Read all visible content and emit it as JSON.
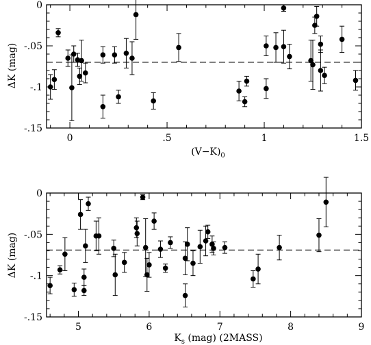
{
  "chart_data": [
    {
      "type": "scatter",
      "xlabel_main": "(V−K)",
      "xlabel_sub": "0",
      "ylabel": "ΔK (mag)",
      "xlim": [
        -0.12,
        1.5
      ],
      "ylim": [
        -0.15,
        0
      ],
      "xticks": [
        0,
        0.5,
        1,
        1.5
      ],
      "xtick_labels": [
        "0",
        ".5",
        "1",
        "1.5"
      ],
      "yticks": [
        0,
        -0.05,
        -0.1,
        -0.15
      ],
      "ytick_labels": [
        "0",
        "-.05",
        "-.1",
        "-.15"
      ],
      "reference_line_y": -0.07,
      "points": [
        {
          "x": -0.1,
          "y": -0.1,
          "err": 0.015
        },
        {
          "x": -0.08,
          "y": -0.091,
          "err": 0.012
        },
        {
          "x": -0.06,
          "y": -0.034,
          "err": 0.005
        },
        {
          "x": -0.01,
          "y": -0.065,
          "err": 0.01
        },
        {
          "x": 0.01,
          "y": -0.101,
          "err": 0.04
        },
        {
          "x": 0.02,
          "y": -0.06,
          "err": 0.01
        },
        {
          "x": 0.04,
          "y": -0.067,
          "err": 0.008
        },
        {
          "x": 0.05,
          "y": -0.087,
          "err": 0.01
        },
        {
          "x": 0.06,
          "y": -0.068,
          "err": 0.025
        },
        {
          "x": 0.08,
          "y": -0.083,
          "err": 0.012
        },
        {
          "x": 0.17,
          "y": -0.061,
          "err": 0.01
        },
        {
          "x": 0.17,
          "y": -0.124,
          "err": 0.014
        },
        {
          "x": 0.23,
          "y": -0.061,
          "err": 0.01
        },
        {
          "x": 0.25,
          "y": -0.112,
          "err": 0.008
        },
        {
          "x": 0.29,
          "y": -0.059,
          "err": 0.018
        },
        {
          "x": 0.32,
          "y": -0.065,
          "err": 0.02
        },
        {
          "x": 0.34,
          "y": -0.012,
          "err": 0.03
        },
        {
          "x": 0.43,
          "y": -0.117,
          "err": 0.01
        },
        {
          "x": 0.56,
          "y": -0.052,
          "err": 0.017
        },
        {
          "x": 0.87,
          "y": -0.105,
          "err": 0.012
        },
        {
          "x": 0.9,
          "y": -0.118,
          "err": 0.006
        },
        {
          "x": 0.91,
          "y": -0.093,
          "err": 0.006
        },
        {
          "x": 1.01,
          "y": -0.05,
          "err": 0.012
        },
        {
          "x": 1.01,
          "y": -0.102,
          "err": 0.012
        },
        {
          "x": 1.06,
          "y": -0.052,
          "err": 0.018
        },
        {
          "x": 1.1,
          "y": -0.051,
          "err": 0.02
        },
        {
          "x": 1.1,
          "y": -0.004,
          "err": 0.004
        },
        {
          "x": 1.13,
          "y": -0.063,
          "err": 0.015
        },
        {
          "x": 1.24,
          "y": -0.068,
          "err": 0.025
        },
        {
          "x": 1.25,
          "y": -0.073,
          "err": 0.03
        },
        {
          "x": 1.26,
          "y": -0.025,
          "err": 0.01
        },
        {
          "x": 1.27,
          "y": -0.014,
          "err": 0.012
        },
        {
          "x": 1.29,
          "y": -0.048,
          "err": 0.01
        },
        {
          "x": 1.29,
          "y": -0.08,
          "err": 0.025
        },
        {
          "x": 1.31,
          "y": -0.086,
          "err": 0.01
        },
        {
          "x": 1.4,
          "y": -0.042,
          "err": 0.016
        },
        {
          "x": 1.47,
          "y": -0.092,
          "err": 0.012
        }
      ]
    },
    {
      "type": "scatter",
      "xlabel_main": "K",
      "xlabel_sub": "s",
      "xlabel_rest": " (mag)  (2MASS)",
      "ylabel": "ΔK (mag)",
      "xlim": [
        4.55,
        9
      ],
      "ylim": [
        -0.15,
        0
      ],
      "xticks": [
        5,
        6,
        7,
        8,
        9
      ],
      "xtick_labels": [
        "5",
        "6",
        "7",
        "8",
        "9"
      ],
      "yticks": [
        0,
        -0.05,
        -0.1,
        -0.15
      ],
      "ytick_labels": [
        "0",
        "-.05",
        "-.1",
        "-.15"
      ],
      "reference_line_y": -0.069,
      "points": [
        {
          "x": 4.6,
          "y": -0.112,
          "err": 0.01
        },
        {
          "x": 4.74,
          "y": -0.093,
          "err": 0.005
        },
        {
          "x": 4.81,
          "y": -0.074,
          "err": 0.02
        },
        {
          "x": 4.94,
          "y": -0.117,
          "err": 0.008
        },
        {
          "x": 5.03,
          "y": -0.026,
          "err": 0.018
        },
        {
          "x": 5.08,
          "y": -0.102,
          "err": 0.01
        },
        {
          "x": 5.08,
          "y": -0.118,
          "err": 0.006
        },
        {
          "x": 5.1,
          "y": -0.064,
          "err": 0.02
        },
        {
          "x": 5.14,
          "y": -0.013,
          "err": 0.008
        },
        {
          "x": 5.25,
          "y": -0.052,
          "err": 0.018
        },
        {
          "x": 5.29,
          "y": -0.052,
          "err": 0.022
        },
        {
          "x": 5.5,
          "y": -0.067,
          "err": 0.01
        },
        {
          "x": 5.52,
          "y": -0.099,
          "err": 0.025
        },
        {
          "x": 5.65,
          "y": -0.084,
          "err": 0.012
        },
        {
          "x": 5.82,
          "y": -0.042,
          "err": 0.012
        },
        {
          "x": 5.83,
          "y": -0.049,
          "err": 0.015
        },
        {
          "x": 5.91,
          "y": -0.005,
          "err": 0.003
        },
        {
          "x": 5.95,
          "y": -0.066,
          "err": 0.035
        },
        {
          "x": 5.97,
          "y": -0.099,
          "err": 0.02
        },
        {
          "x": 6.0,
          "y": -0.087,
          "err": 0.015
        },
        {
          "x": 6.07,
          "y": -0.034,
          "err": 0.01
        },
        {
          "x": 6.16,
          "y": -0.068,
          "err": 0.01
        },
        {
          "x": 6.23,
          "y": -0.091,
          "err": 0.005
        },
        {
          "x": 6.3,
          "y": -0.06,
          "err": 0.007
        },
        {
          "x": 6.51,
          "y": -0.079,
          "err": 0.02
        },
        {
          "x": 6.51,
          "y": -0.124,
          "err": 0.014
        },
        {
          "x": 6.54,
          "y": -0.062,
          "err": 0.02
        },
        {
          "x": 6.62,
          "y": -0.085,
          "err": 0.015
        },
        {
          "x": 6.72,
          "y": -0.065,
          "err": 0.02
        },
        {
          "x": 6.8,
          "y": -0.058,
          "err": 0.018
        },
        {
          "x": 6.83,
          "y": -0.047,
          "err": 0.008
        },
        {
          "x": 6.89,
          "y": -0.062,
          "err": 0.01
        },
        {
          "x": 6.91,
          "y": -0.067,
          "err": 0.008
        },
        {
          "x": 7.07,
          "y": -0.066,
          "err": 0.007
        },
        {
          "x": 7.47,
          "y": -0.104,
          "err": 0.01
        },
        {
          "x": 7.54,
          "y": -0.092,
          "err": 0.018
        },
        {
          "x": 7.84,
          "y": -0.066,
          "err": 0.015
        },
        {
          "x": 8.4,
          "y": -0.051,
          "err": 0.02
        },
        {
          "x": 8.5,
          "y": -0.011,
          "err": 0.03
        }
      ]
    }
  ]
}
